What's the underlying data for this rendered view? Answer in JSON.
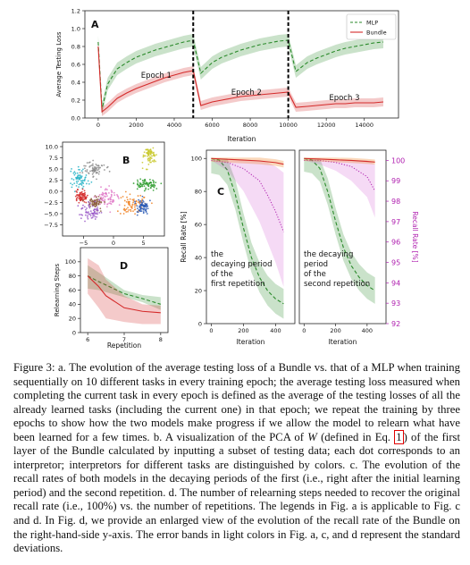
{
  "chart_data": [
    {
      "panel": "A",
      "type": "line",
      "ylabel": "Average Testing Loss",
      "xlabel": "Iteration",
      "xlim": [
        -700,
        15800
      ],
      "ylim": [
        0,
        1.2
      ],
      "xticks": [
        0,
        2000,
        4000,
        6000,
        8000,
        10000,
        12000,
        14000
      ],
      "xtick_labels": [
        "0",
        "2000",
        "4000",
        "6000",
        "8000",
        "10000",
        "12000",
        "14000"
      ],
      "yticks": [
        0.0,
        0.2,
        0.4,
        0.6,
        0.8,
        1.0,
        1.2
      ],
      "ytick_labels": [
        "0.0",
        "0.2",
        "0.4",
        "0.6",
        "0.8",
        "1.0",
        "1.2"
      ],
      "epoch_boundaries": [
        5000,
        10000
      ],
      "annotations": [
        {
          "text": "Epoch 1",
          "x": 2250,
          "y": 0.45
        },
        {
          "text": "Epoch 2",
          "x": 7000,
          "y": 0.26
        },
        {
          "text": "Epoch 3",
          "x": 12150,
          "y": 0.2
        }
      ],
      "legend": [
        "MLP",
        "Bundle"
      ],
      "legend_position": "top-right",
      "series": [
        {
          "name": "MLP",
          "color": "#2a8a2a",
          "dash": "dashed",
          "x": [
            0,
            200,
            500,
            1000,
            1500,
            2000,
            2500,
            3000,
            3500,
            4000,
            4500,
            5000,
            5400,
            6000,
            6500,
            7000,
            7500,
            8000,
            8500,
            9000,
            9500,
            10000,
            10400,
            11000,
            11500,
            12000,
            12500,
            13000,
            13500,
            14000,
            14500,
            15000
          ],
          "y": [
            0.85,
            0.1,
            0.38,
            0.55,
            0.62,
            0.68,
            0.72,
            0.76,
            0.79,
            0.82,
            0.85,
            0.87,
            0.5,
            0.62,
            0.68,
            0.72,
            0.76,
            0.79,
            0.82,
            0.84,
            0.86,
            0.87,
            0.52,
            0.62,
            0.67,
            0.71,
            0.75,
            0.78,
            0.8,
            0.82,
            0.84,
            0.85
          ],
          "band": 0.07
        },
        {
          "name": "Bundle",
          "color": "#d42a2a",
          "dash": "solid",
          "x": [
            0,
            200,
            500,
            1000,
            1500,
            2000,
            2500,
            3000,
            3500,
            4000,
            4500,
            5000,
            5400,
            6000,
            6500,
            7000,
            7500,
            8000,
            8500,
            9000,
            9500,
            10000,
            10400,
            11000,
            11500,
            12000,
            12500,
            13000,
            13500,
            14000,
            14500,
            15000
          ],
          "y": [
            0.8,
            0.07,
            0.12,
            0.22,
            0.28,
            0.33,
            0.37,
            0.41,
            0.45,
            0.48,
            0.51,
            0.53,
            0.14,
            0.18,
            0.2,
            0.22,
            0.24,
            0.25,
            0.26,
            0.27,
            0.28,
            0.29,
            0.12,
            0.13,
            0.14,
            0.15,
            0.16,
            0.16,
            0.17,
            0.17,
            0.17,
            0.18
          ],
          "band": 0.05
        }
      ]
    },
    {
      "panel": "B",
      "type": "scatter",
      "xlim": [
        -8.5,
        8.5
      ],
      "ylim": [
        -10,
        11
      ],
      "xticks": [
        -5,
        0,
        5
      ],
      "xtick_labels": [
        "−5",
        "0",
        "5"
      ],
      "yticks": [
        -7.5,
        -5.0,
        -2.5,
        0.0,
        2.5,
        5.0,
        7.5,
        10.0
      ],
      "ytick_labels": [
        "−7.5",
        "−5.0",
        "−2.5",
        "0.0",
        "2.5",
        "5.0",
        "7.5",
        "10.0"
      ],
      "clusters": [
        {
          "color": "#8a8a8a",
          "cx": -3.2,
          "cy": 5.0,
          "sx": 0.9,
          "sy": 0.9
        },
        {
          "color": "#2ab5c8",
          "cx": -5.6,
          "cy": 3.0,
          "sx": 0.7,
          "sy": 1.1
        },
        {
          "color": "#c8c82a",
          "cx": 6.0,
          "cy": 8.0,
          "sx": 0.6,
          "sy": 1.0
        },
        {
          "color": "#2a9a2a",
          "cx": 5.5,
          "cy": 1.5,
          "sx": 0.9,
          "sy": 0.6
        },
        {
          "color": "#d42a2a",
          "cx": -5.4,
          "cy": -1.2,
          "sx": 0.5,
          "sy": 0.7
        },
        {
          "color": "#e07ac8",
          "cx": -1.2,
          "cy": -1.3,
          "sx": 0.9,
          "sy": 1.0
        },
        {
          "color": "#8a5a3a",
          "cx": -3.0,
          "cy": -2.5,
          "sx": 0.6,
          "sy": 0.6
        },
        {
          "color": "#9a5ac8",
          "cx": -4.0,
          "cy": -4.5,
          "sx": 0.9,
          "sy": 1.0
        },
        {
          "color": "#f08020",
          "cx": 3.2,
          "cy": -2.6,
          "sx": 1.0,
          "sy": 1.2
        },
        {
          "color": "#2a5ab5",
          "cx": 4.8,
          "cy": -3.5,
          "sx": 0.7,
          "sy": 0.8
        }
      ]
    },
    {
      "panel": "C",
      "type": "line",
      "ylabel": "Recall Rate [%]",
      "ylabel_right": "Recall Rate [%]",
      "xlabel": "Iteration",
      "xlim": [
        -30,
        520
      ],
      "ylim": [
        0,
        105
      ],
      "right_ylim": [
        92,
        100.5
      ],
      "xticks": [
        0,
        200,
        400
      ],
      "xtick_labels": [
        "0",
        "200",
        "400"
      ],
      "yticks": [
        0,
        20,
        40,
        60,
        80,
        100
      ],
      "ytick_labels": [
        "0",
        "20",
        "40",
        "60",
        "80",
        "100"
      ],
      "right_yticks": [
        92,
        93,
        94,
        95,
        96,
        97,
        98,
        99,
        100
      ],
      "right_ytick_labels": [
        "92",
        "93",
        "94",
        "95",
        "96",
        "97",
        "98",
        "99",
        "100"
      ],
      "annotations": [
        {
          "subplot": 0,
          "text": "the decaying period of the first repetition"
        },
        {
          "subplot": 1,
          "text": "the decaying period of the second repetition"
        }
      ],
      "subplots": [
        {
          "mlp": {
            "x": [
              0,
              50,
              100,
              150,
              200,
              250,
              300,
              350,
              400,
              450
            ],
            "y": [
              100,
              99,
              93,
              78,
              58,
              40,
              28,
              20,
              15,
              12
            ],
            "band": 9
          },
          "bundle": {
            "x": [
              0,
              100,
              200,
              300,
              400,
              450
            ],
            "y": [
              100,
              99.5,
              99,
              98.5,
              97.5,
              96.5
            ],
            "band": 2
          },
          "bundle_zoom": {
            "x": [
              0,
              100,
              200,
              300,
              350,
              400,
              450
            ],
            "y": [
              100,
              99.9,
              99.6,
              99.0,
              98.3,
              97.5,
              96.5
            ],
            "band_lo": [
              100,
              99.5,
              98.5,
              97.0,
              96.0,
              95.0,
              93.8
            ],
            "band_hi": [
              100,
              100,
              100,
              100,
              99.9,
              99.7,
              99.4
            ]
          }
        },
        {
          "mlp": {
            "x": [
              0,
              50,
              100,
              150,
              200,
              250,
              300,
              350,
              400,
              450
            ],
            "y": [
              100,
              99,
              94,
              80,
              62,
              46,
              35,
              28,
              23,
              20
            ],
            "band": 8
          },
          "bundle": {
            "x": [
              0,
              100,
              200,
              300,
              400,
              450
            ],
            "y": [
              100,
              99.6,
              99.2,
              98.8,
              98.2,
              97.8
            ],
            "band": 1.5
          },
          "bundle_zoom": {
            "x": [
              0,
              100,
              200,
              300,
              400,
              450
            ],
            "y": [
              100,
              100,
              99.9,
              99.7,
              99.2,
              98.5
            ],
            "band_lo": [
              100,
              99.8,
              99.5,
              99.0,
              98.2,
              97.2
            ],
            "band_hi": [
              100,
              100,
              100,
              100,
              100,
              99.8
            ]
          }
        }
      ]
    },
    {
      "panel": "D",
      "type": "line",
      "ylabel": "Relearning Steps",
      "xlabel": "Repetition",
      "xlim": [
        5.8,
        8.2
      ],
      "ylim": [
        0,
        120
      ],
      "xticks": [
        6,
        7,
        8
      ],
      "xtick_labels": [
        "6",
        "7",
        "8"
      ],
      "yticks": [
        0,
        20,
        40,
        60,
        80,
        100
      ],
      "ytick_labels": [
        "0",
        "20",
        "40",
        "60",
        "80",
        "100"
      ],
      "series": [
        {
          "name": "MLP",
          "color": "#2a8a2a",
          "dash": "dashed",
          "x": [
            6.0,
            6.3,
            7.0,
            7.5,
            8.0
          ],
          "y": [
            80,
            72,
            55,
            48,
            40
          ],
          "lo": [
            62,
            60,
            50,
            43,
            32
          ],
          "hi": [
            95,
            85,
            60,
            53,
            50
          ]
        },
        {
          "name": "Bundle",
          "color": "#d42a2a",
          "dash": "solid",
          "x": [
            6.0,
            6.3,
            6.5,
            7.0,
            7.5,
            8.0
          ],
          "y": [
            80,
            65,
            52,
            35,
            30,
            28
          ],
          "lo": [
            55,
            35,
            20,
            15,
            12,
            12
          ],
          "hi": [
            105,
            95,
            75,
            52,
            40,
            38
          ]
        }
      ]
    }
  ],
  "panel_labels": {
    "a": "A",
    "b": "B",
    "c": "C",
    "d": "D"
  },
  "caption": {
    "p1": "Figure 3: a. The evolution of the average testing loss of a Bundle vs. that of a MLP when training sequentially on 10 different tasks in every training epoch; the average testing loss measured when completing the current task in every epoch is defined as the average of the testing losses of all the already learned tasks (including the current one) in that epoch; we repeat the training by three epochs to show how the two models make progress if we allow the model to relearn what have been learned for a few times. b. A visualization of the PCA of",
    "w": "W",
    "p2": "(defined in Eq.",
    "eq": "1",
    "p3": ") of the first layer of the Bundle calculated by inputting a subset of testing data; each dot corresponds to an interpretor; interpretors for different tasks are distinguished by colors. c. The evolution of the recall rates of both models in the decaying periods of the first (i.e., right after the initial learning period) and the second repetition. d. The number of relearning steps needed to recover the original recall rate (i.e., 100%) vs. the number of repetitions. The legends in Fig. a is applicable to Fig. c and d. In Fig. d, we provide an enlarged view of the evolution of the recall rate of the Bundle on the right-hand-side y-axis. The error bands in light colors in Fig. a, c, and d represent the standard deviations."
  }
}
